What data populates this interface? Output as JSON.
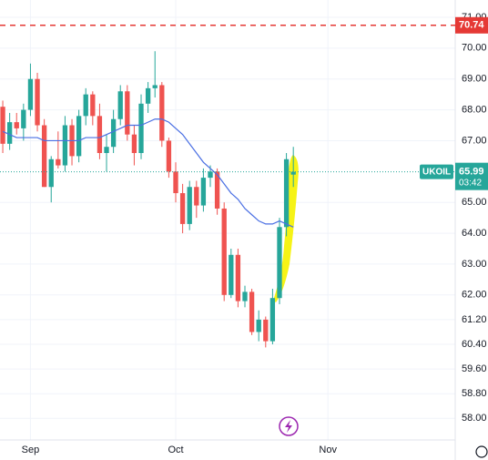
{
  "chart_data": {
    "type": "candlestick",
    "symbol": "UKOIL",
    "last_price": 65.99,
    "countdown": "03:42",
    "alert_level": 70.74,
    "up_color": "#26a69a",
    "down_color": "#ef5350",
    "ma_color": "#4a6fe3",
    "alert_color": "#e53935",
    "open": [
      68.1,
      66.9,
      67.6,
      67.4,
      68.0,
      69.0,
      67.5,
      65.5,
      66.4,
      66.2,
      67.5,
      66.5,
      67.8,
      68.5,
      67.8,
      66.6,
      66.8,
      67.7,
      68.6,
      67.2,
      66.6,
      68.2,
      68.7,
      68.8,
      67.0,
      66.0,
      65.3,
      64.3,
      65.5,
      64.9,
      65.8,
      66.0,
      64.8,
      62.0,
      63.3,
      61.8,
      62.1,
      60.8,
      61.2,
      60.5,
      61.9,
      64.2,
      65.9
    ],
    "high": [
      68.3,
      67.9,
      67.9,
      68.2,
      69.5,
      69.2,
      67.7,
      66.5,
      67.3,
      67.8,
      67.7,
      68.0,
      68.7,
      68.6,
      68.2,
      67.2,
      68.0,
      68.8,
      68.8,
      67.5,
      68.5,
      68.9,
      69.9,
      68.9,
      67.1,
      66.3,
      65.6,
      65.7,
      65.7,
      66.1,
      66.2,
      66.1,
      65.0,
      63.5,
      63.5,
      62.3,
      62.2,
      61.5,
      61.3,
      62.2,
      64.5,
      66.6,
      66.8
    ],
    "low": [
      66.6,
      66.7,
      67.2,
      67.0,
      67.8,
      67.3,
      65.5,
      65.0,
      66.1,
      66.0,
      66.2,
      66.3,
      67.5,
      67.5,
      66.4,
      66.0,
      66.6,
      67.5,
      67.0,
      66.2,
      66.4,
      67.9,
      68.4,
      66.8,
      65.8,
      65.0,
      64.0,
      64.1,
      64.5,
      64.7,
      65.5,
      64.6,
      61.8,
      61.9,
      61.6,
      61.6,
      60.7,
      60.5,
      60.3,
      60.4,
      61.7,
      63.9,
      65.5
    ],
    "close": [
      66.9,
      67.6,
      67.4,
      68.0,
      69.0,
      67.5,
      65.5,
      66.4,
      66.2,
      67.5,
      66.5,
      67.8,
      68.5,
      67.8,
      66.6,
      66.8,
      67.7,
      68.6,
      67.2,
      66.6,
      68.2,
      68.7,
      68.8,
      67.0,
      66.0,
      65.3,
      64.3,
      65.5,
      64.9,
      65.8,
      66.0,
      64.8,
      62.0,
      63.3,
      61.8,
      62.1,
      60.8,
      61.2,
      60.5,
      61.9,
      64.2,
      66.4,
      65.99
    ],
    "ma": [
      67.3,
      67.2,
      67.1,
      67.1,
      67.1,
      67.1,
      67.0,
      67.0,
      67.0,
      67.0,
      67.0,
      67.0,
      67.1,
      67.1,
      67.1,
      67.2,
      67.3,
      67.4,
      67.5,
      67.5,
      67.5,
      67.6,
      67.7,
      67.7,
      67.6,
      67.4,
      67.2,
      66.9,
      66.6,
      66.3,
      66.1,
      65.9,
      65.6,
      65.3,
      65.1,
      64.8,
      64.6,
      64.4,
      64.3,
      64.3,
      64.4,
      64.3,
      64.2
    ],
    "xlim": [
      -0.4,
      65.4
    ],
    "xticks": [
      {
        "value": 4,
        "label": "Sep"
      },
      {
        "value": 25,
        "label": "Oct"
      },
      {
        "value": 47,
        "label": "Nov"
      }
    ],
    "ylim": [
      57.3,
      71.56
    ],
    "yticks": [
      {
        "value": 71,
        "label": "71.00"
      },
      {
        "value": 70,
        "label": "70.00"
      },
      {
        "value": 69,
        "label": "69.00"
      },
      {
        "value": 68,
        "label": "68.00"
      },
      {
        "value": 67,
        "label": "67.00"
      },
      {
        "value": 65,
        "label": "65.00"
      },
      {
        "value": 64,
        "label": "64.00"
      },
      {
        "value": 63,
        "label": "63.00"
      },
      {
        "value": 62,
        "label": "62.00"
      },
      {
        "value": 61.2,
        "label": "61.20"
      },
      {
        "value": 60.4,
        "label": "60.40"
      },
      {
        "value": 59.6,
        "label": "59.60"
      },
      {
        "value": 58.8,
        "label": "58.80"
      },
      {
        "value": 58,
        "label": "58.00"
      }
    ]
  }
}
